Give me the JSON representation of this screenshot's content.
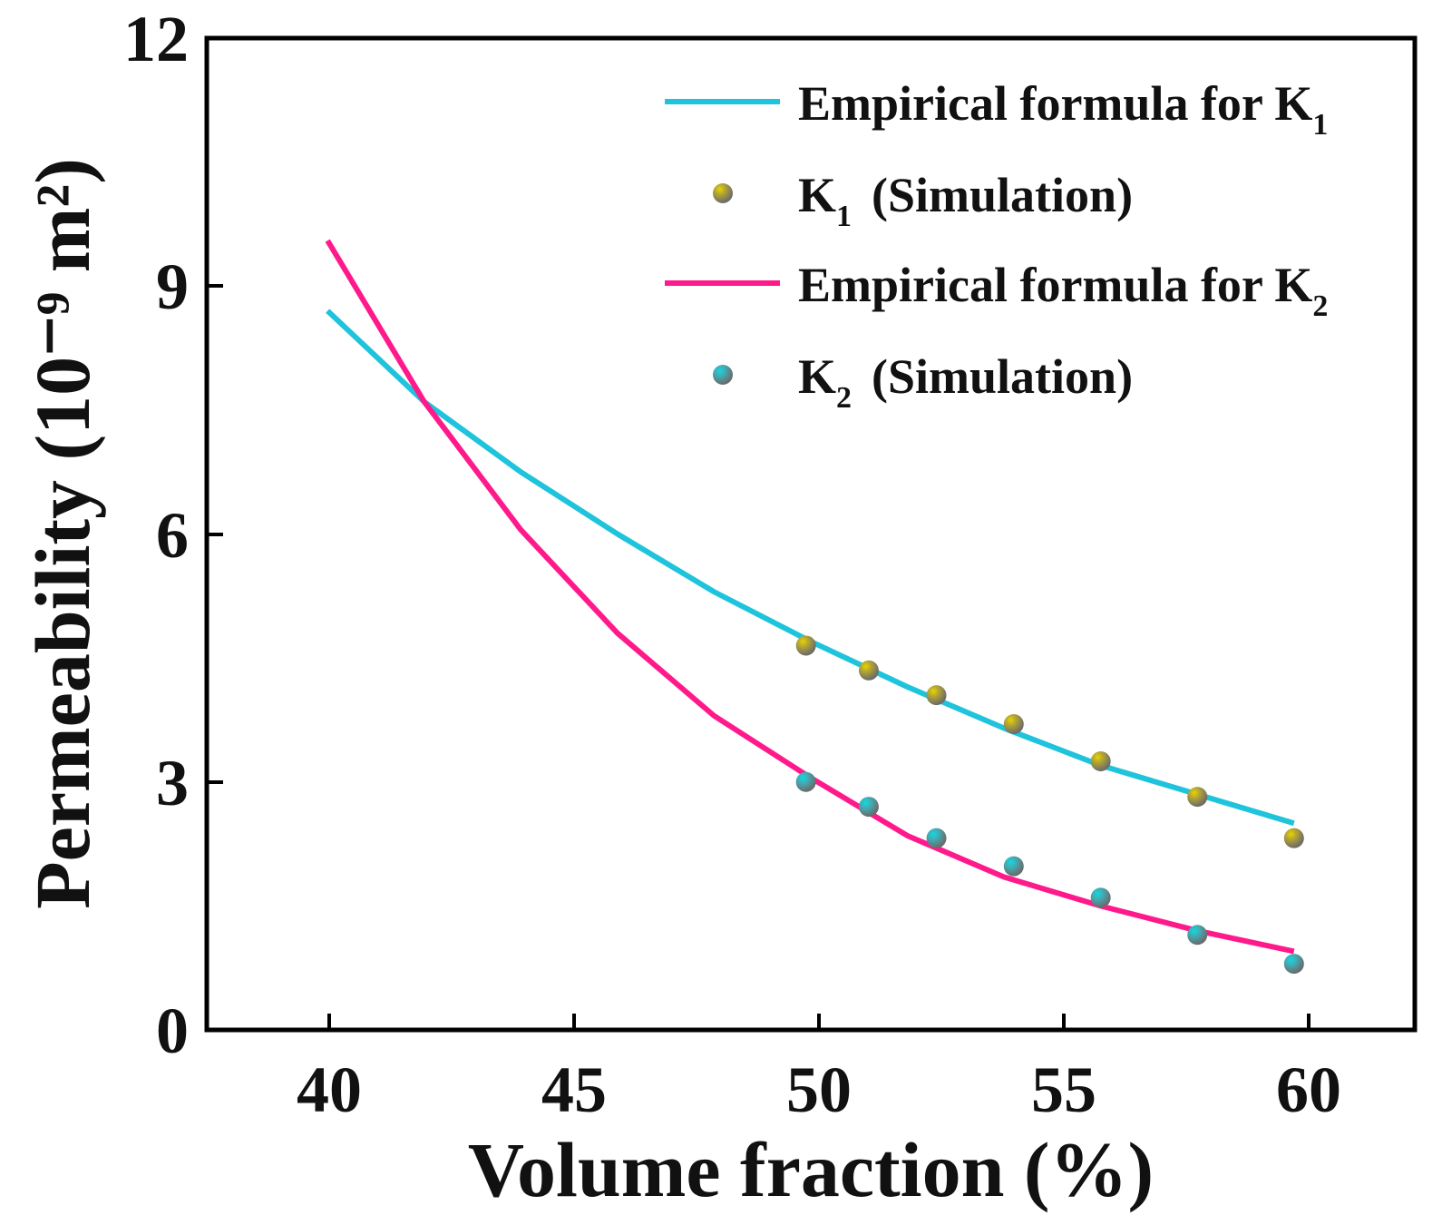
{
  "chart_data": {
    "type": "line",
    "xlabel": "Volume fraction (%)",
    "ylabel": "Permeability (10⁻⁹ m²)",
    "xlim": [
      37.5,
      62.5
    ],
    "ylim": [
      0,
      12
    ],
    "x_ticks": [
      "40",
      "45",
      "50",
      "55",
      "60"
    ],
    "y_ticks": [
      "0",
      "3",
      "6",
      "9",
      "12"
    ],
    "grid": false,
    "legend_position": "top-right",
    "colors": {
      "k1_line": "#1ec3dc",
      "k2_line": "#ff1a8c",
      "k1_marker_highlight": "#e8d400",
      "k2_marker_highlight": "#10d8e0",
      "marker_body": "#777777"
    },
    "series": [
      {
        "name": "Empirical formula for K1",
        "legend_main": "Empirical formula for K",
        "legend_sub": "1",
        "kind": "line",
        "x": [
          40,
          42,
          44,
          46,
          48,
          50,
          52,
          54,
          56,
          58,
          60
        ],
        "y": [
          8.7,
          7.6,
          6.75,
          6.0,
          5.3,
          4.7,
          4.15,
          3.65,
          3.2,
          2.85,
          2.5
        ]
      },
      {
        "name": "K1 (Simulation)",
        "legend_main": "K",
        "legend_sub": "1",
        "legend_suffix": "(Simulation)",
        "kind": "scatter",
        "x": [
          49.9,
          51.2,
          52.6,
          54.2,
          56.0,
          58.0,
          60.0
        ],
        "y": [
          4.65,
          4.35,
          4.05,
          3.7,
          3.25,
          2.82,
          2.32
        ]
      },
      {
        "name": "Empirical formula for K2",
        "legend_main": "Empirical formula for K",
        "legend_sub": "2",
        "kind": "line",
        "x": [
          40,
          42,
          44,
          46,
          48,
          50,
          52,
          54,
          56,
          58,
          60
        ],
        "y": [
          9.55,
          7.6,
          6.05,
          4.8,
          3.8,
          3.05,
          2.35,
          1.85,
          1.5,
          1.2,
          0.95
        ]
      },
      {
        "name": "K2 (Simulation)",
        "legend_main": "K",
        "legend_sub": "2",
        "legend_suffix": "(Simulation)",
        "kind": "scatter",
        "x": [
          49.9,
          51.2,
          52.6,
          54.2,
          56.0,
          58.0,
          60.0
        ],
        "y": [
          3.0,
          2.7,
          2.32,
          1.98,
          1.6,
          1.15,
          0.8
        ]
      }
    ]
  }
}
